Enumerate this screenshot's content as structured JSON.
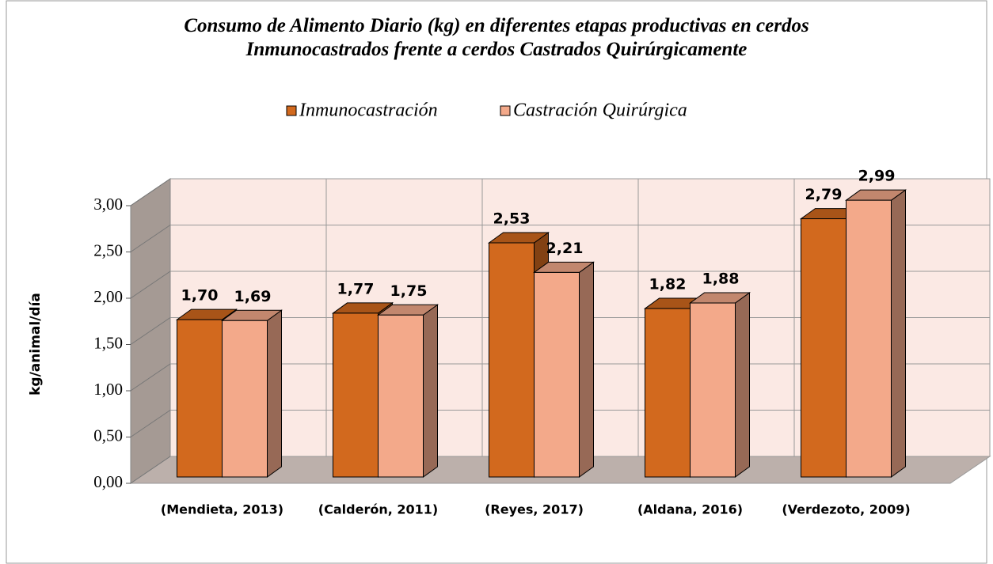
{
  "chart_data": {
    "type": "bar3d",
    "title": "Consumo de Alimento Diario (kg) en diferentes etapas productivas en cerdos\nInmunocastrados frente a cerdos Castrados Quirúrgicamente",
    "y_label": "kg/animal/día",
    "categories": [
      "(Mendieta, 2013)",
      "(Calderón, 2011)",
      "(Reyes, 2017)",
      "(Aldana, 2016)",
      "(Verdezoto, 2009)"
    ],
    "series": [
      {
        "name": "Inmunocastración",
        "color": "#d2691e",
        "values": [
          1.7,
          1.77,
          2.53,
          1.82,
          2.79
        ],
        "value_labels": [
          "1,70",
          "1,77",
          "2,53",
          "1,82",
          "2,79"
        ]
      },
      {
        "name": "Castración Quirúrgica",
        "color": "#f3a98a",
        "values": [
          1.69,
          1.75,
          2.21,
          1.88,
          2.99
        ],
        "value_labels": [
          "1,69",
          "1,75",
          "2,21",
          "1,88",
          "2,99"
        ]
      }
    ],
    "ylim": [
      0,
      3
    ],
    "yticks": [
      {
        "value": 0,
        "label": "0,00"
      },
      {
        "value": 0.5,
        "label": "0,50"
      },
      {
        "value": 1,
        "label": "1,00"
      },
      {
        "value": 1.5,
        "label": "1,50"
      },
      {
        "value": 2,
        "label": "2,00"
      },
      {
        "value": 2.5,
        "label": "2,50"
      },
      {
        "value": 3,
        "label": "3,00"
      }
    ],
    "grid": true,
    "legend": "top"
  }
}
